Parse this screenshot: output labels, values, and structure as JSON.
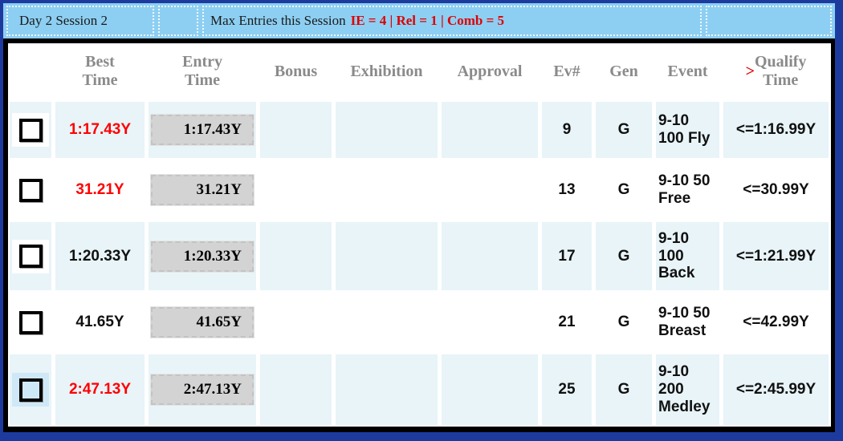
{
  "header_bar": {
    "session": "Day 2 Session 2",
    "max_entries_label": "Max Entries this Session",
    "max_entries_values": "IE = 4 | Rel = 1 | Comb = 5"
  },
  "columns": {
    "best_time": "Best\nTime",
    "entry_time": "Entry\nTime",
    "bonus": "Bonus",
    "exhibition": "Exhibition",
    "approval": "Approval",
    "ev": "Ev#",
    "gen": "Gen",
    "event": "Event",
    "qualify_prefix": ">",
    "qualify": "Qualify\nTime"
  },
  "colors": {
    "time_red": "#ff0000",
    "time_black": "#111111",
    "header_accent_red": "#e00000",
    "bar_blue": "#8dcff2",
    "row_cyan": "#e8f4f8"
  },
  "rows": [
    {
      "best_time": "1:17.43Y",
      "best_time_color": "#ff0000",
      "entry_time": "1:17.43Y",
      "bonus": "",
      "exhibition": "",
      "approval": "",
      "ev": "9",
      "gen": "G",
      "event": "9-10\n100 Fly",
      "qualify": "<=1:16.99Y"
    },
    {
      "best_time": "31.21Y",
      "best_time_color": "#ff0000",
      "entry_time": "31.21Y",
      "bonus": "",
      "exhibition": "",
      "approval": "",
      "ev": "13",
      "gen": "G",
      "event": "9-10 50\nFree",
      "qualify": "<=30.99Y"
    },
    {
      "best_time": "1:20.33Y",
      "best_time_color": "#111111",
      "entry_time": "1:20.33Y",
      "bonus": "",
      "exhibition": "",
      "approval": "",
      "ev": "17",
      "gen": "G",
      "event": "9-10\n100\nBack",
      "qualify": "<=1:21.99Y"
    },
    {
      "best_time": "41.65Y",
      "best_time_color": "#111111",
      "entry_time": "41.65Y",
      "bonus": "",
      "exhibition": "",
      "approval": "",
      "ev": "21",
      "gen": "G",
      "event": "9-10 50\nBreast",
      "qualify": "<=42.99Y"
    },
    {
      "best_time": "2:47.13Y",
      "best_time_color": "#ff0000",
      "entry_time": "2:47.13Y",
      "bonus": "",
      "exhibition": "",
      "approval": "",
      "ev": "25",
      "gen": "G",
      "event": "9-10\n200\nMedley",
      "qualify": "<=2:45.99Y"
    }
  ]
}
